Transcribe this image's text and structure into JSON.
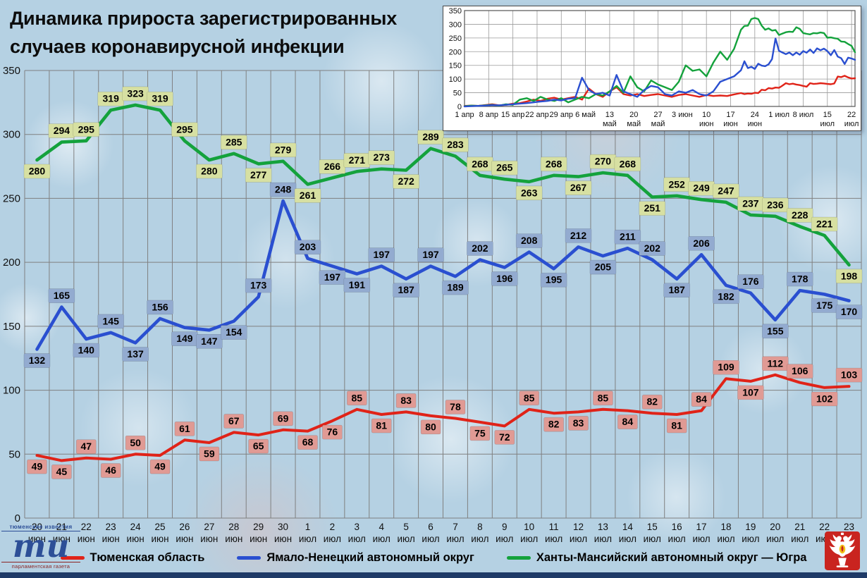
{
  "title": {
    "line1": "Динамика прироста зарегистрированных",
    "line2": "случаев коронавирусной инфекции"
  },
  "palette": {
    "red_line": "#e02318",
    "blue_line": "#2a4fd0",
    "green_line": "#14a23c",
    "red_label_bg": "#e09a94",
    "blue_label_bg": "#93abd0",
    "green_label_bg": "#d7e0a2",
    "label_text": "#000000",
    "grid": "#808080",
    "axis_text": "#111111",
    "bottom_bar": "#1e3a67",
    "emblem_red": "#c9241f",
    "emblem_gold": "#f2c318",
    "logo_blue": "#2d4f97",
    "logo_maroon": "#8b2424"
  },
  "chart_data": [
    {
      "type": "line",
      "title": "",
      "xlabel": "",
      "ylabel": "",
      "ylim": [
        0,
        350
      ],
      "yticks": [
        0,
        50,
        100,
        150,
        200,
        250,
        300,
        350
      ],
      "grid": true,
      "data_labels": true,
      "x_days": [
        "20",
        "21",
        "22",
        "23",
        "24",
        "25",
        "26",
        "27",
        "28",
        "29",
        "30",
        "1",
        "2",
        "3",
        "4",
        "5",
        "6",
        "7",
        "8",
        "9",
        "10",
        "11",
        "12",
        "13",
        "14",
        "15",
        "16",
        "17",
        "18",
        "19",
        "20",
        "21",
        "22",
        "23"
      ],
      "x_months": [
        "июн",
        "июн",
        "июн",
        "июн",
        "июн",
        "июн",
        "июн",
        "июн",
        "июн",
        "июн",
        "июн",
        "июл",
        "июл",
        "июл",
        "июл",
        "июл",
        "июл",
        "июл",
        "июл",
        "июл",
        "июл",
        "июл",
        "июл",
        "июл",
        "июл",
        "июл",
        "июл",
        "июл",
        "июл",
        "июл",
        "июл",
        "июл",
        "июл",
        "июл"
      ],
      "series": [
        {
          "name": "Тюменская область",
          "color": "#e02318",
          "label_bg": "#e09a94",
          "label_bias": "parity",
          "values": [
            49,
            45,
            47,
            46,
            50,
            49,
            61,
            59,
            67,
            65,
            69,
            68,
            76,
            85,
            81,
            83,
            80,
            78,
            75,
            72,
            85,
            82,
            83,
            85,
            84,
            82,
            81,
            84,
            109,
            107,
            112,
            106,
            102,
            103
          ]
        },
        {
          "name": "Ямало-Ненецкий автономный округ",
          "color": "#2a4fd0",
          "label_bg": "#93abd0",
          "label_bias": "parity",
          "values": [
            132,
            165,
            140,
            145,
            137,
            156,
            149,
            147,
            154,
            173,
            248,
            203,
            197,
            191,
            197,
            187,
            197,
            189,
            202,
            196,
            208,
            195,
            212,
            205,
            211,
            202,
            187,
            206,
            182,
            176,
            155,
            178,
            175,
            170
          ]
        },
        {
          "name": "Ханты-Мансийский автономный округ — Югра",
          "color": "#14a23c",
          "label_bg": "#d7e0a2",
          "label_bias": "above",
          "values": [
            280,
            294,
            295,
            319,
            323,
            319,
            295,
            280,
            285,
            277,
            279,
            261,
            266,
            271,
            273,
            272,
            289,
            283,
            268,
            265,
            263,
            268,
            267,
            270,
            268,
            251,
            252,
            249,
            247,
            237,
            236,
            228,
            221,
            198
          ]
        }
      ]
    },
    {
      "type": "line",
      "title": "",
      "note": "inset overview 1 apr - 22 jul, values before 20 jun estimated from pixels",
      "ylim": [
        0,
        350
      ],
      "yticks": [
        0,
        50,
        100,
        150,
        200,
        250,
        300,
        350
      ],
      "grid": true,
      "data_labels": false,
      "x_total_days": 113,
      "xticks": [
        {
          "day": 0,
          "l1": "1 апр",
          "l2": ""
        },
        {
          "day": 7,
          "l1": "8 апр",
          "l2": ""
        },
        {
          "day": 14,
          "l1": "15 апр",
          "l2": ""
        },
        {
          "day": 21,
          "l1": "22 апр",
          "l2": ""
        },
        {
          "day": 28,
          "l1": "29 апр",
          "l2": ""
        },
        {
          "day": 35,
          "l1": "6 май",
          "l2": ""
        },
        {
          "day": 42,
          "l1": "13",
          "l2": "май"
        },
        {
          "day": 49,
          "l1": "20",
          "l2": "май"
        },
        {
          "day": 56,
          "l1": "27",
          "l2": "май"
        },
        {
          "day": 63,
          "l1": "3 июн",
          "l2": ""
        },
        {
          "day": 70,
          "l1": "10",
          "l2": "июн"
        },
        {
          "day": 77,
          "l1": "17",
          "l2": "июн"
        },
        {
          "day": 84,
          "l1": "24",
          "l2": "июн"
        },
        {
          "day": 91,
          "l1": "1 июл",
          "l2": ""
        },
        {
          "day": 98,
          "l1": "8 июл",
          "l2": ""
        },
        {
          "day": 105,
          "l1": "15",
          "l2": "июл"
        },
        {
          "day": 112,
          "l1": "22",
          "l2": "июл"
        }
      ],
      "pre_days": [
        0,
        2,
        4,
        6,
        8,
        10,
        12,
        14,
        16,
        18,
        20,
        22,
        24,
        26,
        28,
        30,
        32,
        34,
        36,
        38,
        40,
        42,
        44,
        46,
        48,
        50,
        52,
        54,
        56,
        58,
        60,
        62,
        64,
        66,
        68,
        70,
        72,
        74,
        76,
        78
      ],
      "main_start_day": 80,
      "series": [
        {
          "name": "Тюменская область",
          "color": "#e02318",
          "pre": [
            2,
            3,
            2,
            5,
            8,
            4,
            6,
            10,
            12,
            18,
            25,
            20,
            28,
            32,
            25,
            30,
            35,
            25,
            65,
            45,
            35,
            55,
            70,
            45,
            40,
            45,
            38,
            42,
            45,
            40,
            35,
            42,
            45,
            40,
            35,
            42,
            38,
            40,
            38,
            44
          ]
        },
        {
          "name": "Ямало-Ненецкий автономный округ",
          "color": "#2a4fd0",
          "pre": [
            0,
            1,
            2,
            3,
            5,
            4,
            6,
            8,
            10,
            12,
            15,
            18,
            20,
            25,
            22,
            28,
            30,
            105,
            60,
            45,
            50,
            40,
            115,
            55,
            45,
            35,
            60,
            75,
            70,
            45,
            40,
            55,
            50,
            60,
            45,
            40,
            55,
            90,
            100,
            110
          ]
        },
        {
          "name": "Ханты-Мансийский автономный округ — Югра",
          "color": "#14a23c",
          "pre": [
            1,
            3,
            2,
            4,
            6,
            3,
            8,
            6,
            25,
            30,
            20,
            35,
            25,
            20,
            30,
            15,
            25,
            35,
            30,
            45,
            40,
            55,
            75,
            50,
            110,
            70,
            55,
            95,
            80,
            70,
            60,
            90,
            150,
            130,
            135,
            110,
            160,
            200,
            170,
            210
          ]
        }
      ]
    }
  ],
  "legend": {
    "items": [
      {
        "label": "Тюменская область",
        "color": "#e02318"
      },
      {
        "label": "Ямало-Ненецкий автономный округ",
        "color": "#2a4fd0"
      },
      {
        "label": "Ханты-Мансийский автономный округ — Югра",
        "color": "#14a23c"
      }
    ]
  },
  "footer": {
    "logo_top": "тюменские известия",
    "logo_main": "ти",
    "logo_bottom": "парламентская газета"
  }
}
